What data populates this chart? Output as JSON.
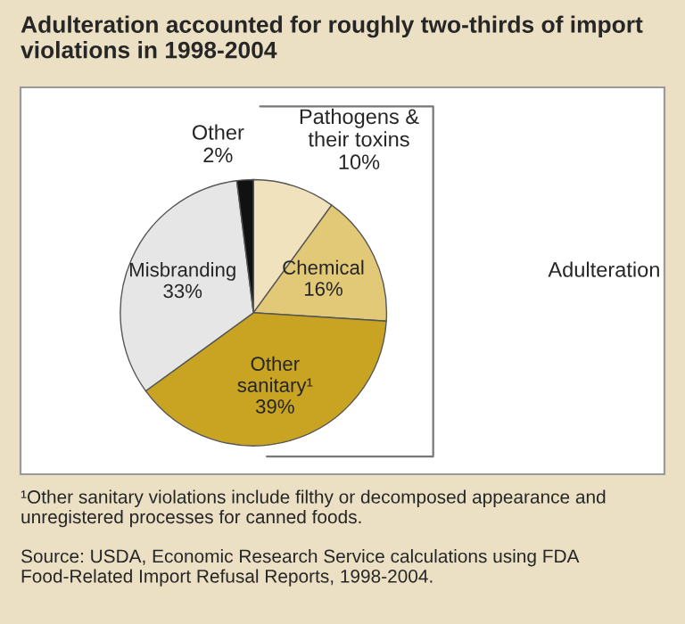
{
  "chart_data": {
    "type": "pie",
    "title": "Adulteration accounted for roughly two-thirds of import violations in 1998-2004",
    "categories": [
      "Pathogens & their toxins",
      "Chemical",
      "Other sanitary¹",
      "Misbranding",
      "Other"
    ],
    "values": [
      10,
      16,
      39,
      33,
      2
    ],
    "value_labels": [
      "10%",
      "16%",
      "39%",
      "33%",
      "2%"
    ],
    "colors": [
      "#f0e2bc",
      "#e2c978",
      "#c8a422",
      "#e6e6e6",
      "#111111"
    ],
    "annotations": [
      "Adulteration",
      "¹Other sanitary violations include filthy or decomposed appearance and unregistered processes for canned foods.",
      "Source: USDA, Economic Research Service calculations using FDA Food-Related Import Refusal Reports, 1998-2004."
    ]
  }
}
